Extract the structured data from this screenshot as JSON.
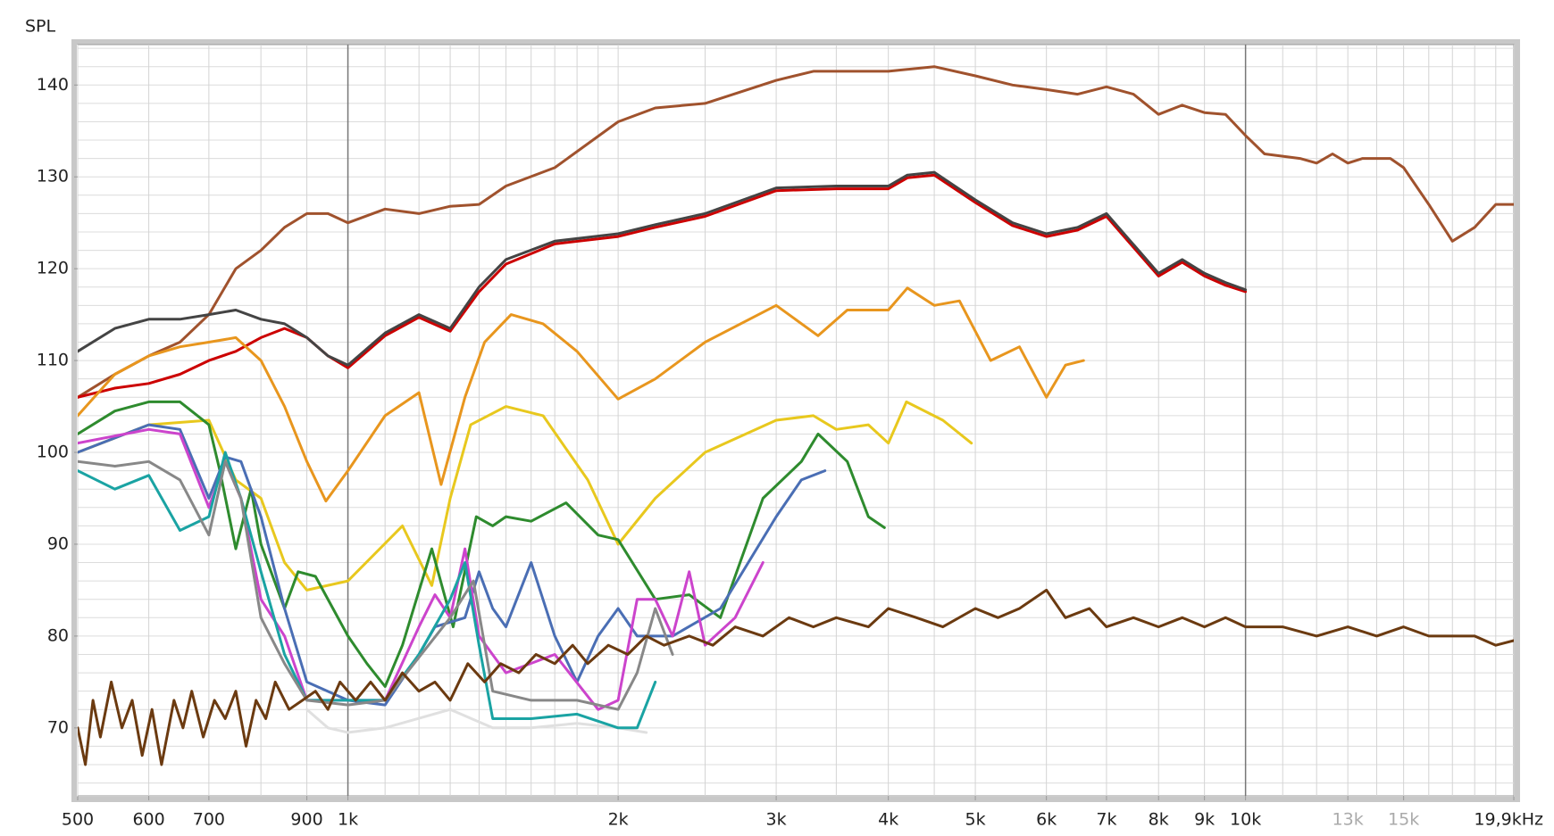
{
  "chart_data": {
    "type": "line",
    "y_label": "SPL",
    "log_x": true,
    "xlim": [
      500,
      19900
    ],
    "ylim": [
      62.6,
      144.4
    ],
    "xticks": [
      500,
      600,
      700,
      900,
      {
        "value": 1000,
        "label": "1k"
      },
      {
        "value": 2000,
        "label": "2k"
      },
      {
        "value": 3000,
        "label": "3k"
      },
      {
        "value": 4000,
        "label": "4k"
      },
      {
        "value": 5000,
        "label": "5k"
      },
      {
        "value": 6000,
        "label": "6k"
      },
      {
        "value": 7000,
        "label": "7k"
      },
      {
        "value": 8000,
        "label": "8k"
      },
      {
        "value": 9000,
        "label": "9k"
      },
      {
        "value": 10000,
        "label": "10k"
      },
      {
        "value": 13000,
        "label": "13k"
      },
      {
        "value": 15000,
        "label": "15k"
      },
      {
        "value": 19900,
        "label": "19,9kHz"
      }
    ],
    "muted_xticks": [
      13000,
      15000
    ],
    "yticks": [
      70,
      80,
      90,
      100,
      110,
      120,
      130,
      140
    ],
    "grid": true,
    "x_gridlines": [
      500,
      600,
      700,
      800,
      900,
      1000,
      1100,
      1200,
      1300,
      1400,
      1500,
      1600,
      1700,
      1800,
      1900,
      2000,
      2500,
      3000,
      3500,
      4000,
      4500,
      5000,
      6000,
      7000,
      8000,
      9000,
      10000,
      11000,
      12000,
      13000,
      14000,
      15000,
      16000,
      17000,
      18000,
      19000
    ],
    "major_x_gridlines": [
      1000,
      10000
    ],
    "y_gridlines": [
      64,
      66,
      68,
      70,
      72,
      74,
      76,
      78,
      80,
      82,
      84,
      86,
      88,
      90,
      92,
      94,
      96,
      98,
      100,
      102,
      104,
      106,
      108,
      110,
      112,
      114,
      116,
      118,
      120,
      122,
      124,
      126,
      128,
      130,
      132,
      134,
      136,
      138,
      140,
      142,
      144
    ],
    "series": [
      {
        "color": "#e0e0e0",
        "x": [
          900,
          950,
          1000,
          1100,
          1300,
          1450,
          1600,
          1800,
          2000,
          2150
        ],
        "values": [
          72,
          70,
          69.5,
          70,
          72,
          70,
          70,
          70.5,
          70,
          69.5
        ]
      },
      {
        "color": "#a0522d",
        "x": [
          500,
          550,
          600,
          650,
          700,
          750,
          800,
          850,
          900,
          950,
          1000,
          1100,
          1200,
          1300,
          1400,
          1500,
          1700,
          2000,
          2200,
          2500,
          3000,
          3300,
          3500,
          4000,
          4500,
          5000,
          5500,
          6000,
          6500,
          7000,
          7500,
          8000,
          8500,
          9000,
          9500,
          10000,
          10500,
          11500,
          12000,
          12500,
          13000,
          13500,
          14500,
          15000,
          16000,
          17000,
          18000,
          19000,
          19900
        ],
        "values": [
          106,
          108.5,
          110.5,
          112,
          115,
          120,
          122,
          124.5,
          126,
          126,
          125,
          126.5,
          126,
          126.8,
          127,
          129,
          131,
          136,
          137.5,
          138,
          140.5,
          141.5,
          141.5,
          141.5,
          142,
          141,
          140,
          139.5,
          139,
          139.8,
          139,
          136.8,
          137.8,
          137,
          136.8,
          134.5,
          132.5,
          132,
          131.5,
          132.5,
          131.5,
          132,
          132,
          131,
          127,
          123,
          124.5,
          127,
          127
        ]
      },
      {
        "color": "#cc0000",
        "x": [
          500,
          550,
          600,
          650,
          700,
          750,
          800,
          850,
          900,
          950,
          1000,
          1100,
          1200,
          1300,
          1400,
          1500,
          1700,
          2000,
          2200,
          2500,
          3000,
          3500,
          4000,
          4200,
          4500,
          5000,
          5500,
          6000,
          6500,
          7000,
          8000,
          8500,
          9000,
          9500,
          10000
        ],
        "values": [
          106,
          107,
          107.5,
          108.5,
          110,
          111,
          112.5,
          113.5,
          112.5,
          110.5,
          109.2,
          112.7,
          114.7,
          113.2,
          117.5,
          120.5,
          122.7,
          123.5,
          124.5,
          125.7,
          128.5,
          128.7,
          128.7,
          129.9,
          130.2,
          127.2,
          124.7,
          123.5,
          124.2,
          125.7,
          119.2,
          120.7,
          119.2,
          118.2,
          117.5
        ]
      },
      {
        "color": "#444444",
        "x": [
          500,
          550,
          600,
          650,
          700,
          750,
          800,
          850,
          900,
          950,
          1000,
          1100,
          1200,
          1300,
          1400,
          1500,
          1700,
          2000,
          2200,
          2500,
          3000,
          3500,
          4000,
          4200,
          4500,
          5000,
          5500,
          6000,
          6500,
          7000,
          8000,
          8500,
          9000,
          9500,
          10000
        ],
        "values": [
          111,
          113.5,
          114.5,
          114.5,
          115,
          115.5,
          114.5,
          114,
          112.5,
          110.5,
          109.5,
          113,
          115,
          113.5,
          118,
          121,
          123,
          123.8,
          124.8,
          126,
          128.8,
          129,
          129,
          130.2,
          130.5,
          127.5,
          125,
          123.8,
          124.5,
          126,
          119.5,
          121,
          119.5,
          118.5,
          117.7
        ]
      },
      {
        "color": "#e8961e",
        "x": [
          500,
          550,
          600,
          650,
          700,
          750,
          800,
          850,
          900,
          945,
          1000,
          1100,
          1200,
          1270,
          1350,
          1420,
          1520,
          1650,
          1800,
          2000,
          2200,
          2500,
          3000,
          3340,
          3600,
          4000,
          4200,
          4500,
          4800,
          5200,
          5600,
          6000,
          6300,
          6600
        ],
        "values": [
          104,
          108.5,
          110.5,
          111.5,
          112,
          112.5,
          110,
          105,
          99,
          94.7,
          98,
          104,
          106.5,
          96.5,
          106,
          112,
          115,
          114,
          111,
          105.8,
          108,
          112,
          116,
          112.7,
          115.5,
          115.5,
          117.9,
          116,
          116.5,
          110,
          111.5,
          106,
          109.5,
          110
        ]
      },
      {
        "color": "#e8c81e",
        "x": [
          500,
          600,
          700,
          750,
          800,
          850,
          900,
          1000,
          1150,
          1240,
          1300,
          1370,
          1500,
          1650,
          1850,
          2000,
          2200,
          2500,
          3000,
          3300,
          3500,
          3800,
          4000,
          4190,
          4600,
          4950
        ],
        "values": [
          100,
          103,
          103.5,
          97,
          95,
          88,
          85,
          86,
          92,
          85.5,
          95,
          103,
          105,
          104,
          97,
          90,
          95,
          100,
          103.5,
          104,
          102.5,
          103,
          101,
          105.5,
          103.5,
          101
        ]
      },
      {
        "color": "#2e8b2e",
        "x": [
          500,
          550,
          600,
          650,
          700,
          720,
          750,
          780,
          800,
          850,
          880,
          920,
          1000,
          1050,
          1100,
          1150,
          1240,
          1310,
          1390,
          1450,
          1500,
          1600,
          1750,
          1900,
          2000,
          2200,
          2400,
          2600,
          2900,
          3200,
          3340,
          3600,
          3800,
          3960
        ],
        "values": [
          102,
          104.5,
          105.5,
          105.5,
          103,
          98,
          89.5,
          96,
          90,
          83,
          87,
          86.5,
          80,
          77,
          74.5,
          79,
          89.5,
          81,
          93,
          92,
          93,
          92.5,
          94.5,
          91,
          90.5,
          84,
          84.5,
          82,
          95,
          99,
          102,
          99,
          93,
          91.8
        ]
      },
      {
        "color": "#4a6eb4",
        "x": [
          500,
          600,
          650,
          700,
          730,
          760,
          800,
          850,
          900,
          1000,
          1100,
          1200,
          1250,
          1350,
          1400,
          1450,
          1500,
          1600,
          1700,
          1800,
          1900,
          2000,
          2100,
          2300,
          2600,
          3000,
          3200,
          3400
        ],
        "values": [
          100,
          103,
          102.5,
          95,
          99.5,
          99,
          93,
          83,
          75,
          73,
          72.5,
          78,
          81,
          82,
          87,
          83,
          81,
          88,
          80,
          75,
          80,
          83,
          80,
          80,
          83,
          93,
          97,
          98
        ]
      },
      {
        "color": "#cc44cc",
        "x": [
          500,
          600,
          650,
          700,
          730,
          760,
          800,
          850,
          900,
          1000,
          1100,
          1200,
          1250,
          1300,
          1350,
          1400,
          1500,
          1700,
          1900,
          2000,
          2100,
          2200,
          2300,
          2400,
          2500,
          2700,
          2900
        ],
        "values": [
          101,
          102.5,
          102,
          94,
          99,
          95,
          84,
          80,
          73,
          73,
          73,
          81,
          84.5,
          82,
          89.5,
          80,
          76,
          78,
          72,
          73,
          84,
          84,
          80,
          87,
          79,
          82,
          88
        ]
      },
      {
        "color": "#1aa3a3",
        "x": [
          500,
          550,
          600,
          650,
          700,
          730,
          760,
          800,
          850,
          900,
          1000,
          1100,
          1200,
          1300,
          1350,
          1400,
          1450,
          1600,
          1800,
          2000,
          2100,
          2200
        ],
        "values": [
          98,
          96,
          97.5,
          91.5,
          93,
          100,
          95,
          87,
          78,
          73,
          73,
          73,
          78,
          84,
          88,
          79,
          71,
          71,
          71.5,
          70,
          70,
          75
        ]
      },
      {
        "color": "#888888",
        "x": [
          500,
          550,
          600,
          650,
          700,
          730,
          760,
          800,
          850,
          900,
          1000,
          1100,
          1300,
          1380,
          1450,
          1600,
          1800,
          2000,
          2100,
          2200,
          2300
        ],
        "values": [
          99,
          98.5,
          99,
          97,
          91,
          99,
          95,
          82,
          77,
          73,
          72.5,
          73,
          82,
          86,
          74,
          73,
          73,
          72,
          76,
          83,
          78
        ]
      },
      {
        "color": "#6b3a10",
        "x": [
          500,
          510,
          520,
          530,
          545,
          560,
          575,
          590,
          605,
          620,
          640,
          655,
          670,
          690,
          710,
          730,
          750,
          770,
          790,
          810,
          830,
          860,
          890,
          920,
          950,
          980,
          1020,
          1060,
          1100,
          1150,
          1200,
          1250,
          1300,
          1360,
          1420,
          1480,
          1550,
          1620,
          1700,
          1780,
          1850,
          1950,
          2050,
          2150,
          2250,
          2400,
          2550,
          2700,
          2900,
          3100,
          3300,
          3500,
          3800,
          4000,
          4300,
          4600,
          5000,
          5300,
          5600,
          6000,
          6300,
          6700,
          7000,
          7500,
          8000,
          8500,
          9000,
          9500,
          10000,
          11000,
          12000,
          13000,
          14000,
          15000,
          16000,
          17000,
          18000,
          19000,
          19900
        ],
        "values": [
          70,
          66,
          73,
          69,
          75,
          70,
          73,
          67,
          72,
          66,
          73,
          70,
          74,
          69,
          73,
          71,
          74,
          68,
          73,
          71,
          75,
          72,
          73,
          74,
          72,
          75,
          73,
          75,
          73,
          76,
          74,
          75,
          73,
          77,
          75,
          77,
          76,
          78,
          77,
          79,
          77,
          79,
          78,
          80,
          79,
          80,
          79,
          81,
          80,
          82,
          81,
          82,
          81,
          83,
          82,
          81,
          83,
          82,
          83,
          85,
          82,
          83,
          81,
          82,
          81,
          82,
          81,
          82,
          81,
          81,
          80,
          81,
          80,
          81,
          80,
          80,
          80,
          79,
          79.5
        ]
      }
    ]
  }
}
